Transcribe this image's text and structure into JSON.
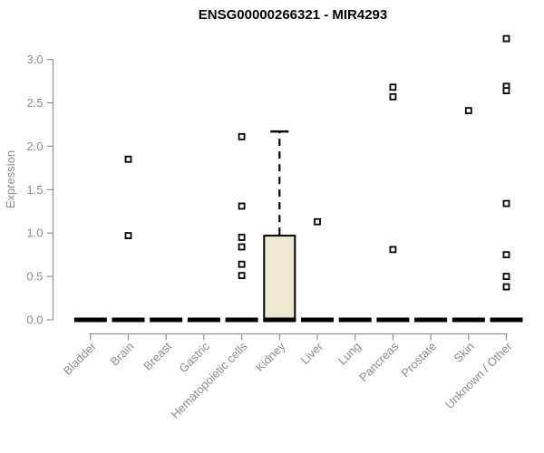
{
  "title": "ENSG00000266321 - MIR4293",
  "chart_data": {
    "type": "boxplot",
    "title": "ENSG00000266321 - MIR4293",
    "xlabel": "",
    "ylabel": "Expression",
    "ylim": [
      0.0,
      3.3
    ],
    "yticks": [
      "0.0",
      "0.5",
      "1.0",
      "1.5",
      "2.0",
      "2.5",
      "3.0"
    ],
    "grid": false,
    "legend": "none",
    "categories": [
      "Bladder",
      "Brain",
      "Breast",
      "Gastric",
      "Hematopoietic cells",
      "Kidney",
      "Liver",
      "Lung",
      "Pancreas",
      "Prostate",
      "Skin",
      "Unknown / Other"
    ],
    "boxes": [
      {
        "label": "Bladder",
        "q1": 0,
        "median": 0,
        "q3": 0,
        "whisker_low": 0,
        "whisker_high": 0,
        "points": []
      },
      {
        "label": "Brain",
        "q1": 0,
        "median": 0,
        "q3": 0,
        "whisker_low": 0,
        "whisker_high": 0,
        "points": [
          1.85,
          0.97
        ]
      },
      {
        "label": "Breast",
        "q1": 0,
        "median": 0,
        "q3": 0,
        "whisker_low": 0,
        "whisker_high": 0,
        "points": []
      },
      {
        "label": "Gastric",
        "q1": 0,
        "median": 0,
        "q3": 0,
        "whisker_low": 0,
        "whisker_high": 0,
        "points": []
      },
      {
        "label": "Hematopoietic cells",
        "q1": 0,
        "median": 0,
        "q3": 0,
        "whisker_low": 0,
        "whisker_high": 0,
        "points": [
          2.11,
          1.31,
          0.95,
          0.84,
          0.64,
          0.51
        ]
      },
      {
        "label": "Kidney",
        "q1": 0,
        "median": 0,
        "q3": 0.97,
        "whisker_low": 0,
        "whisker_high": 2.17,
        "points": []
      },
      {
        "label": "Liver",
        "q1": 0,
        "median": 0,
        "q3": 0,
        "whisker_low": 0,
        "whisker_high": 0,
        "points": [
          1.13
        ]
      },
      {
        "label": "Lung",
        "q1": 0,
        "median": 0,
        "q3": 0,
        "whisker_low": 0,
        "whisker_high": 0,
        "points": []
      },
      {
        "label": "Pancreas",
        "q1": 0,
        "median": 0,
        "q3": 0,
        "whisker_low": 0,
        "whisker_high": 0,
        "points": [
          2.68,
          2.57,
          0.81
        ]
      },
      {
        "label": "Prostate",
        "q1": 0,
        "median": 0,
        "q3": 0,
        "whisker_low": 0,
        "whisker_high": 0,
        "points": []
      },
      {
        "label": "Skin",
        "q1": 0,
        "median": 0,
        "q3": 0,
        "whisker_low": 0,
        "whisker_high": 0,
        "points": [
          2.41
        ]
      },
      {
        "label": "Unknown / Other",
        "q1": 0,
        "median": 0,
        "q3": 0,
        "whisker_low": 0,
        "whisker_high": 0,
        "points": [
          3.24,
          2.69,
          2.64,
          1.34,
          0.75,
          0.5,
          0.38
        ]
      }
    ],
    "colors": {
      "title": "#000000",
      "axis": "#919191",
      "tick_label": "#8c8c8c",
      "box_fill": "#ede9d0",
      "box_stroke": "#000000",
      "median": "#000000",
      "whisker": "#000000",
      "point_fill": "#ffffff",
      "point_stroke": "#000000",
      "background": "#ffffff"
    }
  }
}
